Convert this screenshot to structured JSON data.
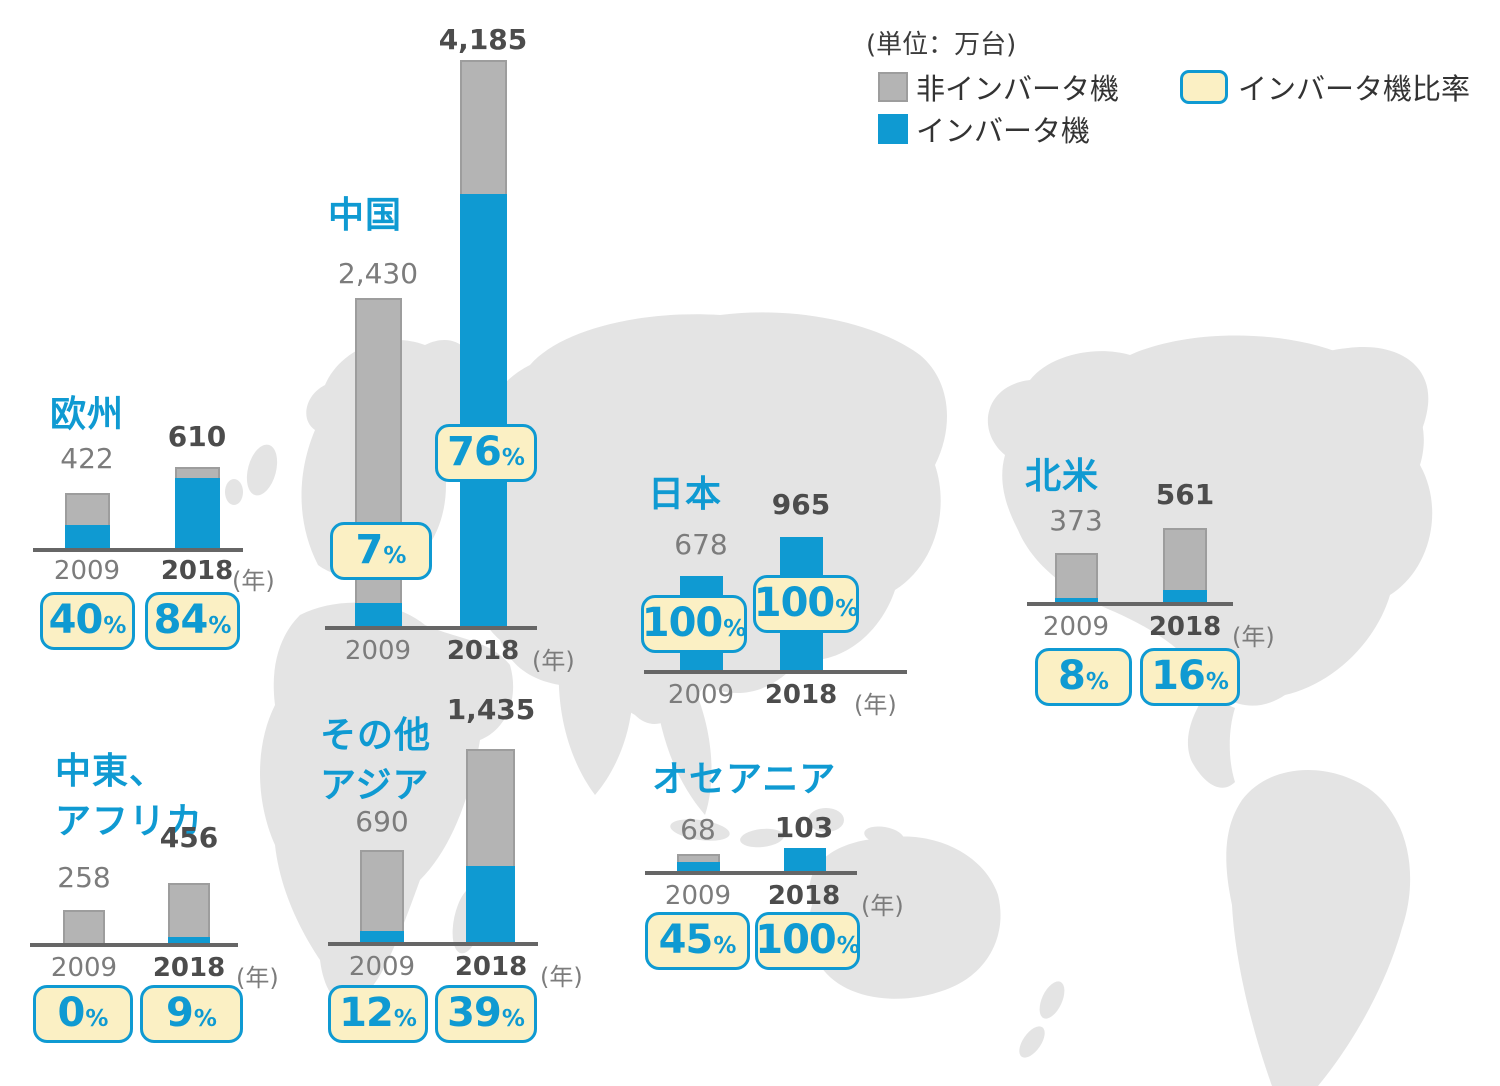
{
  "unit_note": "(単位：万台)",
  "percent_sign": "%",
  "year_suffix": "(年)",
  "legend": {
    "non_inverter": "非インバータ機",
    "inverter": "インバータ機",
    "inverter_ratio": "インバータ機比率"
  },
  "colors": {
    "inverter_blue": "#0f9ad2",
    "non_inverter_gray": "#b4b4b4",
    "ratio_badge_bg": "#fbf0c4",
    "map_gray": "#e4e4e4",
    "axis_gray": "#666666",
    "label_gray": "#7c7c7c",
    "label_dark": "#4c4c4c"
  },
  "chart_data": {
    "type": "bar",
    "stacked": true,
    "unit": "万台",
    "years": [
      "2009",
      "2018"
    ],
    "series": [
      {
        "name": "非インバータ機",
        "role": "non-inverter",
        "color": "#b4b4b4"
      },
      {
        "name": "インバータ機",
        "role": "inverter",
        "color": "#0f9ad2"
      }
    ],
    "note": "インバータ機比率 shown as % badges; totals in 万台",
    "regions": [
      {
        "slug": "europe",
        "title_lines": [
          "欧州"
        ],
        "bars": [
          {
            "year": "2009",
            "total": 422,
            "total_label": "422",
            "inverter_pct": 40,
            "pct_label": "40"
          },
          {
            "year": "2018",
            "total": 610,
            "total_label": "610",
            "inverter_pct": 84,
            "pct_label": "84"
          }
        ]
      },
      {
        "slug": "china",
        "title_lines": [
          "中国"
        ],
        "bars": [
          {
            "year": "2009",
            "total": 2430,
            "total_label": "2,430",
            "inverter_pct": 7,
            "pct_label": "7"
          },
          {
            "year": "2018",
            "total": 4185,
            "total_label": "4,185",
            "inverter_pct": 76,
            "pct_label": "76"
          }
        ]
      },
      {
        "slug": "japan",
        "title_lines": [
          "日本"
        ],
        "bars": [
          {
            "year": "2009",
            "total": 678,
            "total_label": "678",
            "inverter_pct": 100,
            "pct_label": "100"
          },
          {
            "year": "2018",
            "total": 965,
            "total_label": "965",
            "inverter_pct": 100,
            "pct_label": "100"
          }
        ]
      },
      {
        "slug": "north-america",
        "title_lines": [
          "北米"
        ],
        "bars": [
          {
            "year": "2009",
            "total": 373,
            "total_label": "373",
            "inverter_pct": 8,
            "pct_label": "8"
          },
          {
            "year": "2018",
            "total": 561,
            "total_label": "561",
            "inverter_pct": 16,
            "pct_label": "16"
          }
        ]
      },
      {
        "slug": "middle-east-africa",
        "title_lines": [
          "中東、",
          "アフリカ"
        ],
        "bars": [
          {
            "year": "2009",
            "total": 258,
            "total_label": "258",
            "inverter_pct": 0,
            "pct_label": "0"
          },
          {
            "year": "2018",
            "total": 456,
            "total_label": "456",
            "inverter_pct": 9,
            "pct_label": "9"
          }
        ]
      },
      {
        "slug": "other-asia",
        "title_lines": [
          "その他",
          "アジア"
        ],
        "bars": [
          {
            "year": "2009",
            "total": 690,
            "total_label": "690",
            "inverter_pct": 12,
            "pct_label": "12"
          },
          {
            "year": "2018",
            "total": 1435,
            "total_label": "1,435",
            "inverter_pct": 39,
            "pct_label": "39"
          }
        ]
      },
      {
        "slug": "oceania",
        "title_lines": [
          "オセアニア"
        ],
        "bars": [
          {
            "year": "2009",
            "total": 68,
            "total_label": "68",
            "inverter_pct": 45,
            "pct_label": "45"
          },
          {
            "year": "2018",
            "total": 103,
            "total_label": "103",
            "inverter_pct": 100,
            "pct_label": "100"
          }
        ]
      }
    ]
  }
}
